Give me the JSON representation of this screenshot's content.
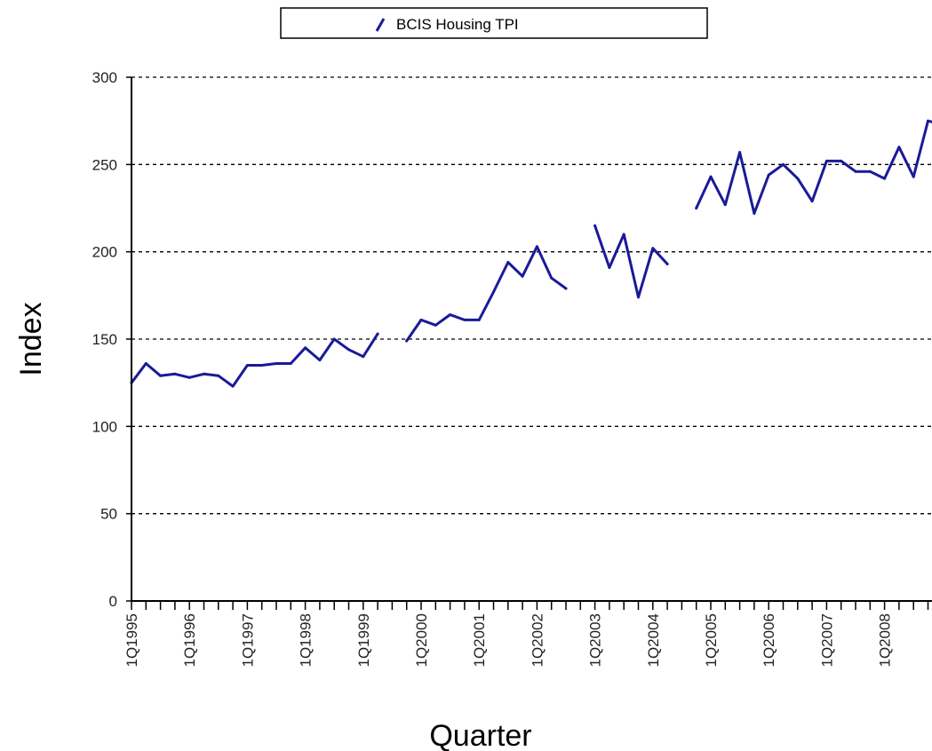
{
  "chart_data": {
    "type": "line",
    "title": "",
    "xlabel": "Quarter",
    "ylabel": "Index",
    "ylim": [
      0,
      300
    ],
    "yticks": [
      "0",
      "50",
      "100",
      "150",
      "200",
      "250",
      "300"
    ],
    "grid": "horizontal dashed",
    "legend": {
      "placement": "top-center",
      "entries": [
        "BCIS Housing TPI"
      ]
    },
    "x_tick_labels": [
      "1Q1995",
      "1Q1996",
      "1Q1997",
      "1Q1998",
      "1Q1999",
      "1Q2000",
      "1Q2001",
      "1Q2002",
      "1Q2003",
      "1Q2004",
      "1Q2005",
      "1Q2006",
      "1Q2007",
      "1Q2008"
    ],
    "x_tick_label_quarter_indices": [
      0,
      4,
      8,
      12,
      16,
      20,
      24,
      28,
      32,
      36,
      40,
      44,
      48,
      52
    ],
    "categories": [
      "1Q1995",
      "2Q1995",
      "3Q1995",
      "4Q1995",
      "1Q1996",
      "2Q1996",
      "3Q1996",
      "4Q1996",
      "1Q1997",
      "2Q1997",
      "3Q1997",
      "4Q1997",
      "1Q1998",
      "2Q1998",
      "3Q1998",
      "4Q1998",
      "1Q1999",
      "2Q1999",
      "3Q1999",
      "4Q1999",
      "1Q2000",
      "2Q2000",
      "3Q2000",
      "4Q2000",
      "1Q2001",
      "2Q2001",
      "3Q2001",
      "4Q2001",
      "1Q2002",
      "2Q2002",
      "3Q2002",
      "4Q2002",
      "1Q2003",
      "2Q2003",
      "3Q2003",
      "4Q2003",
      "1Q2004",
      "2Q2004",
      "3Q2004",
      "4Q2004",
      "1Q2005",
      "2Q2005",
      "3Q2005",
      "4Q2005",
      "1Q2006",
      "2Q2006",
      "3Q2006",
      "4Q2006",
      "1Q2007",
      "2Q2007",
      "3Q2007",
      "4Q2007",
      "1Q2008",
      "2Q2008",
      "3Q2008",
      "4Q2008",
      "1Q2009"
    ],
    "series": [
      {
        "name": "BCIS Housing TPI",
        "color": "#1a1a99",
        "values": [
          125,
          136,
          129,
          130,
          128,
          130,
          129,
          123,
          135,
          135,
          136,
          136,
          145,
          138,
          150,
          144,
          140,
          153,
          null,
          149,
          161,
          158,
          164,
          161,
          161,
          177,
          194,
          186,
          203,
          185,
          179,
          null,
          215,
          191,
          210,
          174,
          202,
          193,
          null,
          225,
          243,
          227,
          257,
          222,
          244,
          250,
          242,
          229,
          252,
          252,
          246,
          246,
          242,
          260,
          243,
          275,
          273
        ]
      }
    ]
  }
}
